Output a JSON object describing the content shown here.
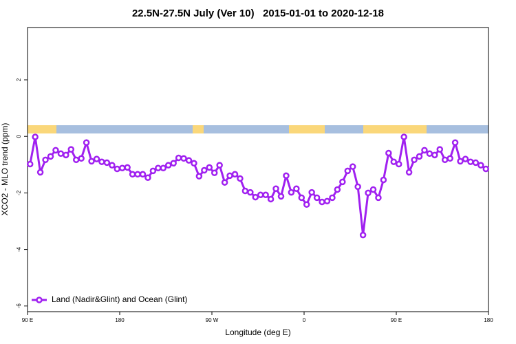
{
  "chart_data": {
    "type": "line",
    "title": "22.5N-27.5N July (Ver 10)   2015-01-01 to 2020-12-18",
    "xlabel": "Longitude (deg E)",
    "ylabel": "XCO2 - MLO trend (ppm)",
    "xlim": [
      90,
      540
    ],
    "xticks": [
      {
        "value": 90,
        "label": "90 E"
      },
      180,
      {
        "value": 270,
        "label": "90 W"
      },
      {
        "value": 360,
        "label": "0"
      },
      {
        "value": 450,
        "label": "90 E"
      },
      {
        "value": 540,
        "label": "180"
      }
    ],
    "ylim": [
      -6.2,
      3.85
    ],
    "yticks": [
      -6,
      -4,
      -2,
      0,
      2
    ],
    "legend": "bottom-left",
    "x": [
      92.5,
      97.5,
      102.5,
      107.5,
      112.5,
      117.5,
      122.5,
      127.5,
      132.5,
      137.5,
      142.5,
      147.5,
      152.5,
      157.5,
      162.5,
      167.5,
      172.5,
      177.5,
      182.5,
      187.5,
      192.5,
      197.5,
      202.5,
      207.5,
      212.5,
      217.5,
      222.5,
      227.5,
      232.5,
      237.5,
      242.5,
      247.5,
      252.5,
      257.5,
      262.5,
      267.5,
      272.5,
      277.5,
      282.5,
      287.5,
      292.5,
      297.5,
      302.5,
      307.5,
      312.5,
      317.5,
      322.5,
      327.5,
      332.5,
      337.5,
      342.5,
      347.5,
      352.5,
      357.5,
      362.5,
      367.5,
      372.5,
      377.5,
      382.5,
      387.5,
      392.5,
      397.5,
      402.5,
      407.5,
      412.5,
      417.5,
      422.5,
      427.5,
      432.5,
      437.5,
      442.5,
      447.5,
      452.5,
      457.5,
      462.5,
      467.5,
      472.5,
      477.5,
      482.5,
      487.5,
      492.5,
      497.5,
      502.5,
      507.5,
      512.5,
      517.5,
      522.5,
      527.5,
      532.5,
      537.5
    ],
    "series": [
      {
        "name": "Land (Nadir&Glint) and Ocean (Glint)",
        "color": "#a020f0",
        "values": [
          -0.98,
          -0.02,
          -1.27,
          -0.83,
          -0.71,
          -0.49,
          -0.61,
          -0.66,
          -0.46,
          -0.83,
          -0.78,
          -0.22,
          -0.88,
          -0.8,
          -0.9,
          -0.93,
          -1.02,
          -1.15,
          -1.12,
          -1.1,
          -1.34,
          -1.34,
          -1.34,
          -1.46,
          -1.22,
          -1.12,
          -1.12,
          -1.02,
          -0.95,
          -0.76,
          -0.78,
          -0.85,
          -0.95,
          -1.41,
          -1.2,
          -1.1,
          -1.29,
          -1.02,
          -1.63,
          -1.39,
          -1.34,
          -1.49,
          -1.93,
          -1.98,
          -2.15,
          -2.07,
          -2.07,
          -2.22,
          -1.85,
          -2.12,
          -1.39,
          -1.98,
          -1.85,
          -2.17,
          -2.41,
          -1.98,
          -2.17,
          -2.32,
          -2.29,
          -2.17,
          -1.88,
          -1.61,
          -1.22,
          -1.07,
          -1.78,
          -3.49,
          -2.0,
          -1.88,
          -2.17,
          -1.54,
          -0.59,
          -0.9,
          -0.98,
          -0.02,
          -1.27,
          -0.83,
          -0.71,
          -0.49,
          -0.61,
          -0.66,
          -0.46,
          -0.83,
          -0.78,
          -0.22,
          -0.88,
          -0.8,
          -0.9,
          -0.93,
          -1.02,
          -1.15
        ]
      }
    ]
  }
}
